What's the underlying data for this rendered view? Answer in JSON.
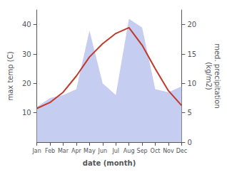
{
  "chart_data": {
    "type": "line",
    "xlabel": "date (month)",
    "ylabel": "max temp (C)",
    "y2label": "med. precipitation\n(kg/m2)",
    "categories": [
      "Jan",
      "Feb",
      "Mar",
      "Apr",
      "May",
      "Jun",
      "Jul",
      "Aug",
      "Sep",
      "Oct",
      "Nov",
      "Dec"
    ],
    "series": [
      {
        "type": "area",
        "axis": "y2",
        "color": "#c5cdf0",
        "values": [
          6.0,
          7.5,
          8.0,
          9.0,
          19.0,
          10.0,
          8.0,
          21.0,
          19.5,
          9.0,
          8.5,
          9.5
        ]
      },
      {
        "type": "line",
        "color": "#c0392b",
        "values": [
          11.5,
          13.5,
          17.0,
          22.5,
          29.0,
          33.5,
          37.0,
          39.0,
          33.0,
          25.0,
          17.5,
          12.5
        ]
      }
    ],
    "ylim": [
      0,
      45
    ],
    "yticks": [
      10,
      20,
      30,
      40
    ],
    "y2lim": [
      0,
      22.5
    ],
    "y2ticks": [
      0,
      5,
      10,
      15,
      20
    ],
    "grid": false
  }
}
